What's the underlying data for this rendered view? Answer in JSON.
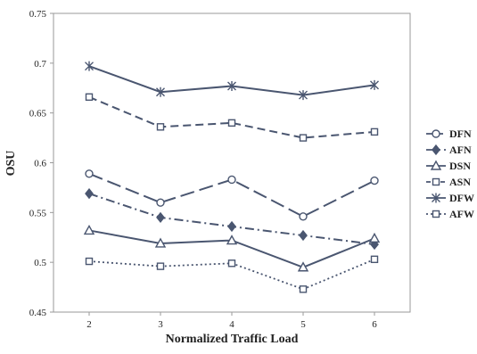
{
  "chart_data": {
    "type": "line",
    "title": "",
    "xlabel": "Normalized Traffic Load",
    "ylabel": "OSU",
    "x": [
      2,
      3,
      4,
      5,
      6
    ],
    "x_tick_labels": [
      "2",
      "3",
      "4",
      "5",
      "6"
    ],
    "y_tick_labels": [
      "0.45",
      "0.5",
      "0.55",
      "0.6",
      "0.65",
      "0.7",
      "0.75"
    ],
    "ylim": [
      0.45,
      0.75
    ],
    "grid": false,
    "legend_position": "right",
    "line_color": "#4a5670",
    "series": [
      {
        "name": "DFN",
        "values": [
          0.589,
          0.56,
          0.583,
          0.546,
          0.582
        ],
        "marker": "circle",
        "dash": "long-dash"
      },
      {
        "name": "AFN",
        "values": [
          0.569,
          0.545,
          0.536,
          0.527,
          0.518
        ],
        "marker": "diamond",
        "dash": "dash-dot"
      },
      {
        "name": "DSN",
        "values": [
          0.532,
          0.519,
          0.522,
          0.495,
          0.524
        ],
        "marker": "triangle",
        "dash": "solid"
      },
      {
        "name": "ASN",
        "values": [
          0.666,
          0.636,
          0.64,
          0.625,
          0.631
        ],
        "marker": "square",
        "dash": "dash"
      },
      {
        "name": "DFW",
        "values": [
          0.697,
          0.671,
          0.677,
          0.668,
          0.678
        ],
        "marker": "star",
        "dash": "solid"
      },
      {
        "name": "AFW",
        "values": [
          0.501,
          0.496,
          0.499,
          0.473,
          0.503
        ],
        "marker": "square",
        "dash": "dot"
      }
    ]
  }
}
